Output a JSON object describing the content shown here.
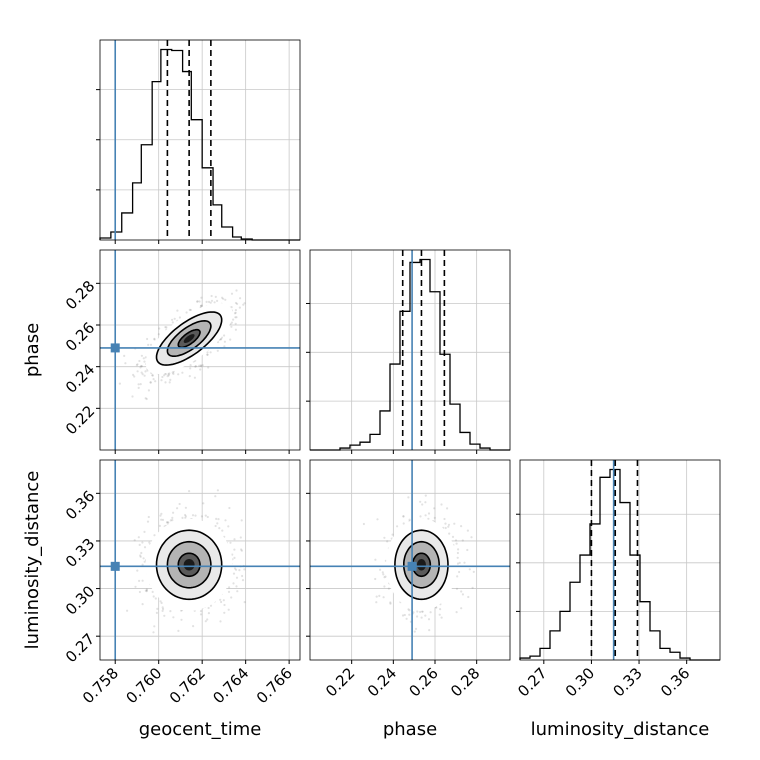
{
  "chart_data": {
    "type": "corner",
    "parameters": [
      "geocent_time",
      "phase",
      "luminosity_distance"
    ],
    "truth": {
      "geocent_time": 0.758,
      "phase": 0.249,
      "luminosity_distance": 0.314
    },
    "truth_color": "#4682b4",
    "ranges": {
      "geocent_time": [
        0.7573,
        0.7665
      ],
      "phase": [
        0.2,
        0.296
      ],
      "luminosity_distance": [
        0.255,
        0.381
      ]
    },
    "ticks": {
      "geocent_time": {
        "values": [
          0.758,
          0.76,
          0.762,
          0.764,
          0.766
        ],
        "labels": [
          "0.758",
          "0.760",
          "0.762",
          "0.764",
          "0.766"
        ]
      },
      "phase": {
        "values": [
          0.22,
          0.24,
          0.26,
          0.28
        ],
        "labels": [
          "0.22",
          "0.24",
          "0.26",
          "0.28"
        ]
      },
      "luminosity_distance": {
        "values": [
          0.27,
          0.3,
          0.33,
          0.36
        ],
        "labels": [
          "0.27",
          "0.30",
          "0.33",
          "0.36"
        ]
      }
    },
    "quantiles": {
      "geocent_time": [
        0.7604,
        0.7614,
        0.7624
      ],
      "phase": [
        0.2445,
        0.2535,
        0.2645
      ],
      "luminosity_distance": [
        0.3,
        0.315,
        0.329
      ]
    },
    "histograms": {
      "geocent_time": {
        "edges": [
          0.7573,
          0.7578,
          0.7583,
          0.7588,
          0.7592,
          0.7597,
          0.7601,
          0.7606,
          0.7611,
          0.7615,
          0.762,
          0.7625,
          0.7629,
          0.7634,
          0.7638,
          0.7643,
          0.7648,
          0.7652,
          0.7657,
          0.7661,
          0.7665
        ],
        "counts": [
          2,
          8,
          27,
          57,
          95,
          158,
          190,
          189,
          168,
          120,
          72,
          35,
          13,
          3,
          1,
          0,
          0,
          0,
          0,
          0
        ]
      },
      "phase": {
        "edges": [
          0.2,
          0.2048,
          0.2096,
          0.2144,
          0.2192,
          0.224,
          0.2288,
          0.2336,
          0.2384,
          0.2432,
          0.248,
          0.2528,
          0.2576,
          0.2624,
          0.2672,
          0.272,
          0.2768,
          0.2816,
          0.2864,
          0.2912,
          0.296
        ],
        "counts": [
          0,
          0,
          0,
          2,
          5,
          8,
          16,
          40,
          88,
          142,
          192,
          195,
          162,
          98,
          47,
          18,
          6,
          2,
          0,
          0
        ]
      },
      "luminosity_distance": {
        "edges": [
          0.255,
          0.2613,
          0.2676,
          0.2739,
          0.2802,
          0.2865,
          0.2928,
          0.2991,
          0.3054,
          0.3117,
          0.318,
          0.3243,
          0.3306,
          0.3369,
          0.3432,
          0.3495,
          0.3558,
          0.3621,
          0.3684,
          0.3747,
          0.381
        ],
        "counts": [
          2,
          4,
          12,
          30,
          50,
          80,
          108,
          140,
          188,
          196,
          162,
          108,
          60,
          30,
          12,
          8,
          2,
          0,
          0,
          0
        ]
      }
    },
    "pairs": [
      {
        "x": "geocent_time",
        "y": "phase",
        "mean": [
          0.7614,
          0.2535
        ],
        "sd": [
          0.001,
          0.0085
        ],
        "corr": 0.7,
        "points": 900
      },
      {
        "x": "geocent_time",
        "y": "luminosity_distance",
        "mean": [
          0.7614,
          0.315
        ],
        "sd": [
          0.001,
          0.0145
        ],
        "corr": 0.0,
        "points": 900
      },
      {
        "x": "phase",
        "y": "luminosity_distance",
        "mean": [
          0.2535,
          0.315
        ],
        "sd": [
          0.0085,
          0.0145
        ],
        "corr": 0.0,
        "points": 900
      }
    ],
    "contour_levels_sigma": [
      0.5,
      1.0,
      1.5,
      2.0
    ],
    "grid": true
  }
}
